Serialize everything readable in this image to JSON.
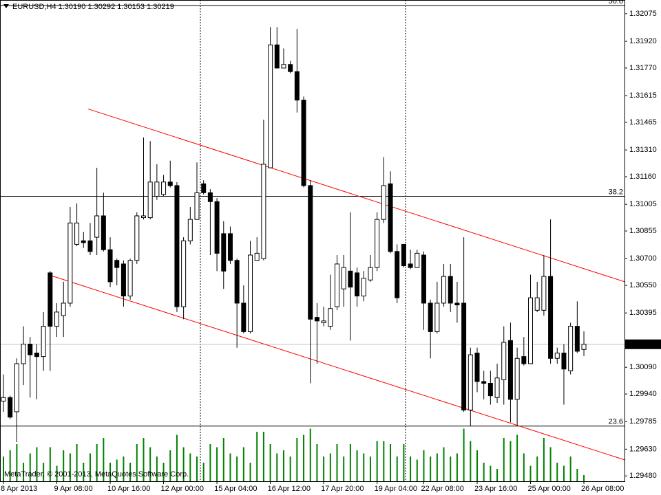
{
  "chart_data": {
    "type": "candlestick",
    "title": "EURUSD,H4 1.30190 1.30292 1.30153 1.30219",
    "copyright": "MetaTrader, © 2001-2013, MetaQuotes Software Corp.",
    "categories": [
      "8 Apr 2013",
      null,
      null,
      null,
      null,
      null,
      null,
      null,
      "9 Apr 08:00",
      null,
      null,
      null,
      null,
      null,
      null,
      null,
      "10 Apr 16:00",
      null,
      null,
      null,
      null,
      null,
      null,
      null,
      "12 Apr 00:00",
      null,
      null,
      null,
      null,
      null,
      null,
      null,
      "15 Apr 04:00",
      null,
      null,
      null,
      null,
      null,
      null,
      null,
      "16 Apr 12:00",
      null,
      null,
      null,
      null,
      null,
      null,
      null,
      "17 Apr 20:00",
      null,
      null,
      null,
      null,
      null,
      null,
      null,
      "19 Apr 04:00",
      null,
      null,
      null,
      null,
      null,
      null,
      "22 Apr 08:00",
      null,
      null,
      null,
      null,
      null,
      null,
      null,
      "23 Apr 16:00",
      null,
      null,
      null,
      null,
      null,
      null,
      null,
      "25 Apr 00:00",
      null,
      null,
      null,
      null,
      null,
      null,
      null,
      "26 Apr 08:00"
    ],
    "ohlc": [
      [
        1.299,
        1.3005,
        1.2984,
        1.2992
      ],
      [
        1.2992,
        1.2993,
        1.298,
        1.2981
      ],
      [
        1.2984,
        1.3014,
        1.2967,
        1.3011
      ],
      [
        1.3011,
        1.3032,
        1.2999,
        1.3022
      ],
      [
        1.3022,
        1.3026,
        1.2992,
        1.3016
      ],
      [
        1.3017,
        1.3022,
        1.2991,
        1.3015
      ],
      [
        1.3015,
        1.304,
        1.3007,
        1.3032
      ],
      [
        1.3062,
        1.3063,
        1.3007,
        1.3032
      ],
      [
        1.3032,
        1.3045,
        1.3026,
        1.304
      ],
      [
        1.3038,
        1.3057,
        1.3026,
        1.3045
      ],
      [
        1.3045,
        1.3099,
        1.3043,
        1.309
      ],
      [
        1.3078,
        1.3101,
        1.3077,
        1.309
      ],
      [
        1.308,
        1.3085,
        1.3076,
        1.3079
      ],
      [
        1.308,
        1.309,
        1.3072,
        1.3074
      ],
      [
        1.3082,
        1.3121,
        1.3072,
        1.3094
      ],
      [
        1.3094,
        1.3107,
        1.3074,
        1.3075
      ],
      [
        1.3075,
        1.3082,
        1.3054,
        1.3057
      ],
      [
        1.3069,
        1.307,
        1.3055,
        1.3065
      ],
      [
        1.3067,
        1.3069,
        1.3043,
        1.3049
      ],
      [
        1.3049,
        1.307,
        1.3047,
        1.3069
      ],
      [
        1.3069,
        1.3096,
        1.3067,
        1.3094
      ],
      [
        1.3093,
        1.3138,
        1.3092,
        1.3094
      ],
      [
        1.3093,
        1.3136,
        1.3092,
        1.3113
      ],
      [
        1.3105,
        1.3123,
        1.3103,
        1.3113
      ],
      [
        1.3106,
        1.3117,
        1.3105,
        1.3113
      ],
      [
        1.3113,
        1.3125,
        1.311,
        1.3111
      ],
      [
        1.3111,
        1.3113,
        1.304,
        1.3043
      ],
      [
        1.3043,
        1.3082,
        1.3036,
        1.308
      ],
      [
        1.308,
        1.3099,
        1.3078,
        1.3092
      ],
      [
        1.3092,
        1.3124,
        1.3092,
        1.3107
      ],
      [
        1.3112,
        1.3114,
        1.3106,
        1.3107
      ],
      [
        1.3107,
        1.3109,
        1.3072,
        1.3102
      ],
      [
        1.3102,
        1.3104,
        1.3063,
        1.3073
      ],
      [
        1.3084,
        1.3091,
        1.3053,
        1.3063
      ],
      [
        1.3084,
        1.3088,
        1.3067,
        1.3069
      ],
      [
        1.3069,
        1.307,
        1.302,
        1.3045
      ],
      [
        1.3045,
        1.3055,
        1.3028,
        1.3029
      ],
      [
        1.3029,
        1.308,
        1.3028,
        1.3072
      ],
      [
        1.3069,
        1.3082,
        1.3069,
        1.3073
      ],
      [
        1.307,
        1.3148,
        1.3069,
        1.3123
      ],
      [
        1.3121,
        1.32,
        1.3121,
        1.319
      ],
      [
        1.319,
        1.32,
        1.3177,
        1.3177
      ],
      [
        1.3177,
        1.3188,
        1.3177,
        1.3179
      ],
      [
        1.3179,
        1.3181,
        1.3174,
        1.3175
      ],
      [
        1.3175,
        1.3199,
        1.3152,
        1.3159
      ],
      [
        1.3159,
        1.3161,
        1.311,
        1.3111
      ],
      [
        1.3111,
        1.3114,
        1.3,
        1.3036
      ],
      [
        1.3037,
        1.3045,
        1.3011,
        1.3035
      ],
      [
        1.3034,
        1.3043,
        1.3032,
        1.3035
      ],
      [
        1.3032,
        1.3061,
        1.303,
        1.3042
      ],
      [
        1.3043,
        1.3072,
        1.3041,
        1.3067
      ],
      [
        1.3053,
        1.3072,
        1.3043,
        1.3065
      ],
      [
        1.3063,
        1.3096,
        1.3024,
        1.3054
      ],
      [
        1.3062,
        1.3065,
        1.3043,
        1.3049
      ],
      [
        1.3049,
        1.3063,
        1.3046,
        1.3059
      ],
      [
        1.3058,
        1.3072,
        1.3057,
        1.3065
      ],
      [
        1.3065,
        1.3096,
        1.3063,
        1.3092
      ],
      [
        1.3092,
        1.3127,
        1.309,
        1.3111
      ],
      [
        1.3112,
        1.3119,
        1.3073,
        1.3074
      ],
      [
        1.3074,
        1.3078,
        1.3045,
        1.3048
      ],
      [
        1.3078,
        1.3078,
        1.3065,
        1.3066
      ],
      [
        1.3067,
        1.3075,
        1.3064,
        1.3065
      ],
      [
        1.3065,
        1.3075,
        1.3065,
        1.3073
      ],
      [
        1.3072,
        1.3074,
        1.303,
        1.3045
      ],
      [
        1.3045,
        1.3047,
        1.3014,
        1.3029
      ],
      [
        1.3029,
        1.3057,
        1.3028,
        1.3045
      ],
      [
        1.3045,
        1.3067,
        1.3043,
        1.306
      ],
      [
        1.306,
        1.3067,
        1.304,
        1.3045
      ],
      [
        1.3045,
        1.3057,
        1.3034,
        1.3044
      ],
      [
        1.3045,
        1.3082,
        1.2984,
        1.2985
      ],
      [
        1.2985,
        1.302,
        1.2976,
        1.3016
      ],
      [
        1.3017,
        1.302,
        1.2995,
        1.3001
      ],
      [
        1.3001,
        1.3007,
        1.2991,
        1.3
      ],
      [
        1.3,
        1.3007,
        1.2988,
        1.2993
      ],
      [
        1.2992,
        1.3011,
        1.2989,
        1.3003
      ],
      [
        1.3002,
        1.3032,
        1.2988,
        1.3023
      ],
      [
        1.3024,
        1.3034,
        1.2978,
        1.2991
      ],
      [
        1.2991,
        1.302,
        1.2976,
        1.3014
      ],
      [
        1.3015,
        1.3026,
        1.301,
        1.3011
      ],
      [
        1.3011,
        1.3061,
        1.3011,
        1.3048
      ],
      [
        1.3041,
        1.3057,
        1.304,
        1.3048
      ],
      [
        1.3041,
        1.3072,
        1.3038,
        1.306
      ],
      [
        1.306,
        1.3092,
        1.3011,
        1.3014
      ],
      [
        1.3014,
        1.302,
        1.3011,
        1.3017
      ],
      [
        1.3017,
        1.3022,
        1.2988,
        1.3008
      ],
      [
        1.3007,
        1.3034,
        1.3005,
        1.3032
      ],
      [
        1.3032,
        1.3046,
        1.3017,
        1.3018
      ],
      [
        1.3019,
        1.30292,
        1.30153,
        1.30219
      ]
    ],
    "volume": [
      40,
      50,
      60,
      30,
      45,
      55,
      30,
      55,
      25,
      50,
      45,
      60,
      30,
      45,
      60,
      70,
      30,
      35,
      40,
      30,
      60,
      70,
      55,
      40,
      30,
      50,
      75,
      55,
      45,
      40,
      30,
      60,
      55,
      70,
      45,
      40,
      55,
      30,
      80,
      80,
      60,
      45,
      50,
      40,
      70,
      75,
      85,
      60,
      40,
      45,
      60,
      40,
      60,
      50,
      45,
      40,
      65,
      65,
      60,
      40,
      60,
      40,
      35,
      50,
      40,
      45,
      55,
      40,
      45,
      85,
      65,
      50,
      30,
      25,
      20,
      70,
      65,
      75,
      45,
      25,
      40,
      70,
      55,
      30,
      25,
      40,
      20,
      10
    ],
    "volume_color": "#008000",
    "bull_color": "#ffffff",
    "bear_color": "#000000",
    "ylim": [
      1.2945,
      1.3213
    ],
    "yticks": [
      1.32075,
      {
        "value": 1.3192,
        "label": "1.31920"
      },
      {
        "value": 1.3177,
        "label": "1.31770"
      },
      1.31615,
      1.31465,
      {
        "value": 1.3131,
        "label": "1.31310"
      },
      {
        "value": 1.3116,
        "label": "1.31160"
      },
      1.31005,
      1.30855,
      {
        "value": 1.307,
        "label": "1.30700"
      },
      {
        "value": 1.3055,
        "label": "1.30550"
      },
      1.30395,
      {
        "value": 1.3009,
        "label": "1.30090"
      },
      {
        "value": 1.2994,
        "label": "1.29940"
      },
      1.29785,
      {
        "value": 1.2963,
        "label": "1.29630"
      },
      {
        "value": 1.2948,
        "label": "1.29480"
      }
    ],
    "bid": 1.30219,
    "fibo_levels": [
      {
        "label": "50.0",
        "price": 1.3212
      },
      {
        "label": "38.2",
        "price": 1.3105
      },
      {
        "label": "23.6",
        "price": 1.2976
      }
    ],
    "trendlines": [
      {
        "color": "#ff0000",
        "points": [
          [
            12.7,
            1.3154
          ],
          [
            93.1,
            1.3057
          ]
        ]
      },
      {
        "color": "#ff0000",
        "points": [
          [
            6.7,
            1.3061
          ],
          [
            93.1,
            1.2957
          ]
        ]
      }
    ]
  }
}
